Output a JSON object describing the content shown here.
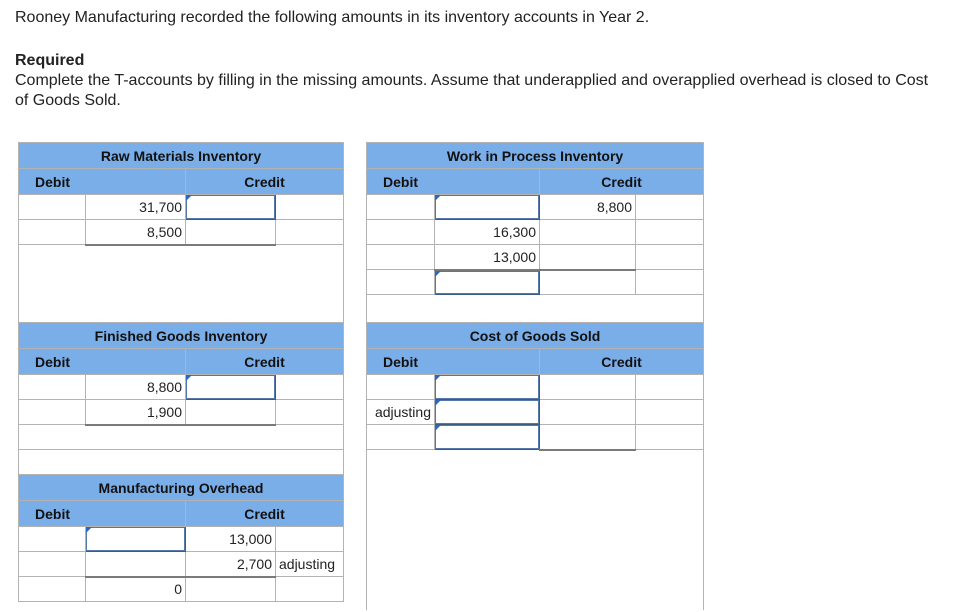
{
  "intro": "Rooney Manufacturing recorded the following amounts in its inventory accounts in Year 2.",
  "required_label": "Required",
  "instructions": "Complete the T-accounts by filling in the missing amounts. Assume that underapplied and overapplied overhead is closed to Cost of Goods Sold.",
  "accounts": {
    "raw_materials": {
      "title": "Raw Materials Inventory",
      "debit_label": "Debit",
      "credit_label": "Credit",
      "debits": [
        "31,700",
        "8,500"
      ]
    },
    "work_in_process": {
      "title": "Work in Process Inventory",
      "debit_label": "Debit",
      "credit_label": "Credit",
      "credit_left": "8,800",
      "debits": [
        "16,300",
        "13,000"
      ]
    },
    "finished_goods": {
      "title": "Finished Goods Inventory",
      "debit_label": "Debit",
      "credit_label": "Credit",
      "debits": [
        "8,800",
        "1,900"
      ]
    },
    "cost_of_goods_sold": {
      "title": "Cost of Goods Sold",
      "debit_label": "Debit",
      "credit_label": "Credit",
      "adjusting_label": "adjusting"
    },
    "manufacturing_overhead": {
      "title": "Manufacturing Overhead",
      "debit_label": "Debit",
      "credit_label": "Credit",
      "credits": [
        "13,000",
        "2,700"
      ],
      "credit_note": "adjusting",
      "balance": "0"
    }
  }
}
